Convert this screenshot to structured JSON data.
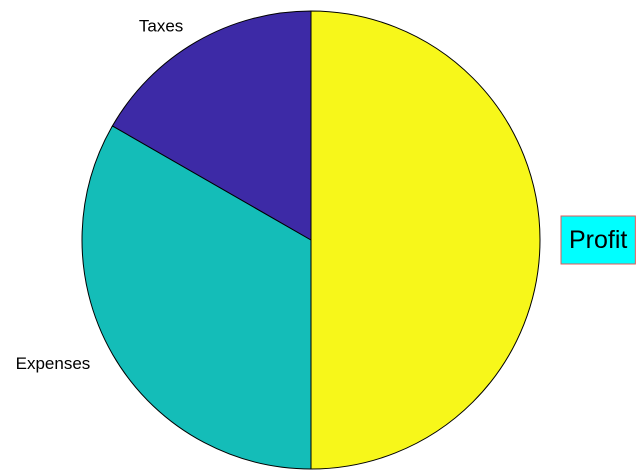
{
  "chart_data": {
    "type": "pie",
    "title": "",
    "slices": [
      {
        "label": "Profit",
        "value": 50,
        "color": "#f7f71a",
        "label_style": "callout",
        "label_bg": "#00ffff",
        "label_border": "#e05a5a"
      },
      {
        "label": "Expenses",
        "value": 33.3,
        "color": "#14bdb8",
        "label_style": "plain"
      },
      {
        "label": "Taxes",
        "value": 16.7,
        "color": "#3d2aa6",
        "label_style": "plain"
      }
    ],
    "start_angle": "12 o'clock",
    "direction": "clockwise",
    "legend": "none"
  }
}
